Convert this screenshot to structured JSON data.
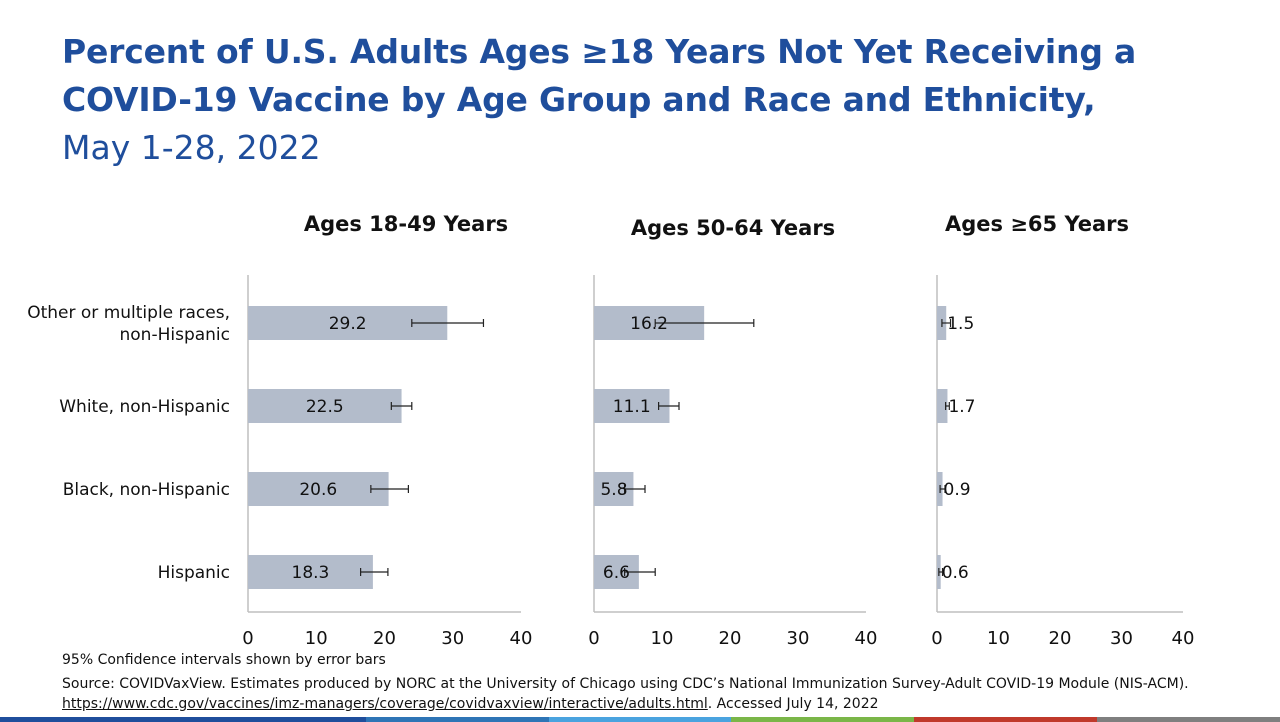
{
  "title": "Percent of U.S. Adults Ages ≥18 Years Not Yet Receiving a COVID-19 Vaccine by Age Group and Race and Ethnicity,",
  "subtitle": "May 1-28, 2022",
  "colors": {
    "title": "#1f4e9c",
    "bar": "#b3bccb",
    "axis": "#bfbfbf",
    "strip": [
      "#1f4e9c",
      "#1f4e9c",
      "#2e75b6",
      "#4aa3df",
      "#7ab648",
      "#c0392b",
      "#7f7f7f"
    ]
  },
  "chart_data": [
    {
      "type": "bar",
      "orientation": "horizontal",
      "title": "Ages 18-49 Years",
      "categories": [
        "Other or multiple races, non-Hispanic",
        "White, non-Hispanic",
        "Black, non-Hispanic",
        "Hispanic"
      ],
      "values": [
        29.2,
        22.5,
        20.6,
        18.3
      ],
      "value_labels": [
        "29.2",
        "22.5",
        "20.6",
        "18.3"
      ],
      "ci_low": [
        24.0,
        21.0,
        18.0,
        16.5
      ],
      "ci_high": [
        34.5,
        24.0,
        23.5,
        20.5
      ],
      "xlim": [
        0,
        40
      ],
      "xticks": [
        0,
        10,
        20,
        30,
        40
      ]
    },
    {
      "type": "bar",
      "orientation": "horizontal",
      "title": "Ages 50-64 Years",
      "categories": [
        "Other or multiple races, non-Hispanic",
        "White, non-Hispanic",
        "Black, non-Hispanic",
        "Hispanic"
      ],
      "values": [
        16.2,
        11.1,
        5.8,
        6.6
      ],
      "value_labels": [
        "16.2",
        "11.1",
        "5.8",
        "6.6"
      ],
      "ci_low": [
        9.0,
        9.5,
        4.5,
        4.5
      ],
      "ci_high": [
        23.5,
        12.5,
        7.5,
        9.0
      ],
      "xlim": [
        0,
        40
      ],
      "xticks": [
        0,
        10,
        20,
        30,
        40
      ]
    },
    {
      "type": "bar",
      "orientation": "horizontal",
      "title": "Ages ≥65 Years",
      "categories": [
        "Other or multiple races, non-Hispanic",
        "White, non-Hispanic",
        "Black, non-Hispanic",
        "Hispanic"
      ],
      "values": [
        1.5,
        1.7,
        0.9,
        0.6
      ],
      "value_labels": [
        "1.5",
        "1.7",
        "0.9",
        "0.6"
      ],
      "ci_low": [
        0.8,
        1.4,
        0.5,
        0.3
      ],
      "ci_high": [
        2.2,
        2.0,
        1.3,
        0.9
      ],
      "xlim": [
        0,
        40
      ],
      "xticks": [
        0,
        10,
        20,
        30,
        40
      ]
    }
  ],
  "category_labels": [
    [
      "Other or multiple races,",
      "non-Hispanic"
    ],
    [
      "White, non-Hispanic"
    ],
    [
      "Black, non-Hispanic"
    ],
    [
      "Hispanic"
    ]
  ],
  "footnote": "95% Confidence intervals shown by error bars",
  "source": {
    "text_before": "Source: COVIDVaxView. Estimates produced by NORC at the University of Chicago using CDC’s National Immunization Survey-Adult COVID-19 Module (NIS-ACM). ",
    "link": "https://www.cdc.gov/vaccines/imz-managers/coverage/covidvaxview/interactive/adults.html",
    "text_after": ". Accessed July 14, 2022"
  }
}
